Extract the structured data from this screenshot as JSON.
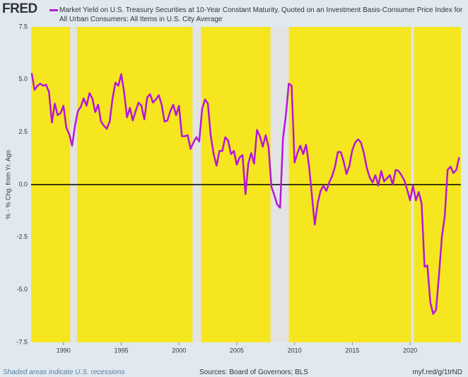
{
  "chart_data": {
    "type": "line",
    "logo": "FRED",
    "title": "Market Yield on U.S. Treasury Securities at 10-Year Constant Maturity, Quoted on an Investment Basis-Consumer Price Index for All Urban Consumers: All Items in U.S. City Average",
    "y_label": "% - % Chg. from Yr. Ago",
    "note": "Shaded areas indicate U.S. recessions",
    "source": "Sources: Board of Governors; BLS",
    "link": "myf.red/g/1trND",
    "xlim": [
      1987.2,
      2024.4
    ],
    "xticks": [
      1990,
      1995,
      2000,
      2005,
      2010,
      2015,
      2020
    ],
    "ylim": [
      -7.5,
      7.5
    ],
    "yticks": [
      7.5,
      {
        "value": 5,
        "label": "5.0"
      },
      2.5,
      {
        "value": 0,
        "label": "0.0"
      },
      -2.5,
      {
        "value": -5,
        "label": "-5.0"
      },
      -7.5
    ],
    "plot_color": "#f6e61f",
    "recession_color": "#e3e3e3",
    "recessions": [
      [
        1990.58,
        1991.17
      ],
      [
        2001.17,
        2001.92
      ],
      [
        2007.92,
        2009.5
      ],
      [
        2020.08,
        2020.33
      ]
    ],
    "x": [
      1987.25,
      1987.5,
      1987.75,
      1988,
      1988.25,
      1988.5,
      1988.75,
      1989,
      1989.25,
      1989.5,
      1989.75,
      1990,
      1990.25,
      1990.5,
      1990.75,
      1991,
      1991.25,
      1991.5,
      1991.75,
      1992,
      1992.25,
      1992.5,
      1992.75,
      1993,
      1993.25,
      1993.5,
      1993.75,
      1994,
      1994.25,
      1994.5,
      1994.75,
      1995,
      1995.25,
      1995.5,
      1995.75,
      1996,
      1996.25,
      1996.5,
      1996.75,
      1997,
      1997.25,
      1997.5,
      1997.75,
      1998,
      1998.25,
      1998.5,
      1998.75,
      1999,
      1999.25,
      1999.5,
      1999.75,
      2000,
      2000.25,
      2000.5,
      2000.75,
      2001,
      2001.25,
      2001.5,
      2001.75,
      2002,
      2002.25,
      2002.5,
      2002.75,
      2003,
      2003.25,
      2003.5,
      2003.75,
      2004,
      2004.25,
      2004.5,
      2004.75,
      2005,
      2005.25,
      2005.5,
      2005.75,
      2006,
      2006.25,
      2006.5,
      2006.75,
      2007,
      2007.25,
      2007.5,
      2007.75,
      2008,
      2008.25,
      2008.5,
      2008.75,
      2009,
      2009.25,
      2009.5,
      2009.75,
      2010,
      2010.25,
      2010.5,
      2010.75,
      2011,
      2011.25,
      2011.5,
      2011.75,
      2012,
      2012.25,
      2012.5,
      2012.75,
      2013,
      2013.25,
      2013.5,
      2013.75,
      2014,
      2014.25,
      2014.5,
      2014.75,
      2015,
      2015.25,
      2015.5,
      2015.75,
      2016,
      2016.25,
      2016.5,
      2016.75,
      2017,
      2017.25,
      2017.5,
      2017.75,
      2018,
      2018.25,
      2018.5,
      2018.75,
      2019,
      2019.25,
      2019.5,
      2019.75,
      2020,
      2020.25,
      2020.5,
      2020.75,
      2021,
      2021.25,
      2021.5,
      2021.75,
      2022,
      2022.25,
      2022.5,
      2022.75,
      2023,
      2023.25,
      2023.5,
      2023.75,
      2024,
      2024.25
    ],
    "series": [
      {
        "name": "Market Yield on U.S. Treasury Securities at 10-Year Constant Maturity, Quoted on an Investment Basis-Consumer Price Index for All Urban Consumers: All Items in U.S. City Average",
        "color": "#b318d8",
        "values": [
          5.3,
          4.5,
          4.7,
          4.8,
          4.7,
          4.75,
          4.4,
          2.95,
          3.85,
          3.3,
          3.4,
          3.75,
          2.7,
          2.4,
          1.85,
          2.8,
          3.5,
          3.7,
          4.1,
          3.75,
          4.35,
          4.1,
          3.45,
          3.8,
          3.0,
          2.8,
          2.65,
          3.0,
          4.1,
          4.85,
          4.7,
          5.25,
          4.4,
          3.2,
          3.65,
          3.05,
          3.5,
          3.9,
          3.75,
          3.1,
          4.15,
          4.3,
          3.9,
          4.05,
          4.25,
          3.8,
          3.0,
          3.05,
          3.5,
          3.8,
          3.3,
          3.75,
          2.3,
          2.3,
          2.35,
          1.7,
          2.0,
          2.25,
          2.05,
          3.6,
          4.05,
          3.85,
          2.3,
          1.45,
          0.9,
          1.6,
          1.6,
          2.25,
          2.1,
          1.45,
          1.6,
          0.95,
          1.3,
          1.4,
          -0.45,
          1.0,
          1.5,
          1.0,
          2.6,
          2.3,
          1.8,
          2.35,
          1.8,
          -0.1,
          -0.5,
          -0.95,
          -1.1,
          2.2,
          3.3,
          4.8,
          4.7,
          1.05,
          1.5,
          1.85,
          1.45,
          1.9,
          0.9,
          -0.5,
          -1.9,
          -0.9,
          -0.3,
          -0.05,
          -0.3,
          0.1,
          0.4,
          0.85,
          1.55,
          1.55,
          1.1,
          0.5,
          0.9,
          1.65,
          2.0,
          2.15,
          2.0,
          1.5,
          0.8,
          0.35,
          0.1,
          0.45,
          -0.05,
          0.65,
          0.15,
          0.3,
          0.45,
          0.0,
          0.7,
          0.65,
          0.45,
          0.2,
          -0.25,
          -0.75,
          -0.05,
          -0.75,
          -0.35,
          -0.9,
          -3.9,
          -3.85,
          -5.6,
          -6.15,
          -5.95,
          -4.3,
          -2.5,
          -1.5,
          0.7,
          0.85,
          0.55,
          0.7,
          1.3
        ]
      }
    ]
  }
}
